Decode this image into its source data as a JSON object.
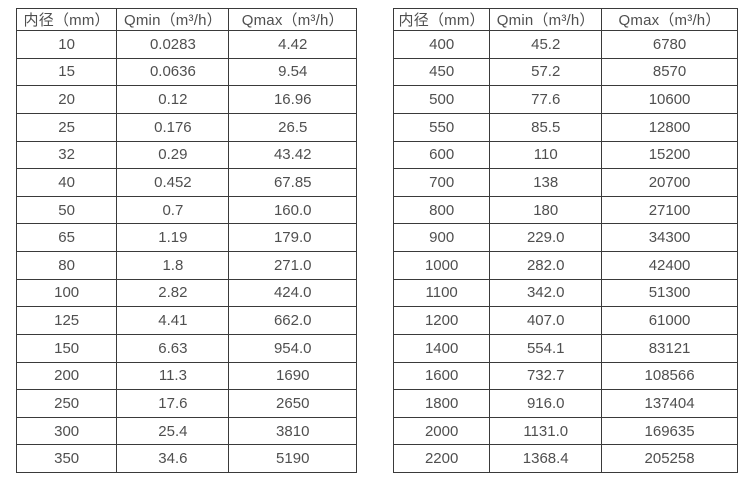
{
  "colors": {
    "background": "#ffffff",
    "border": "#3a3a3a",
    "text": "#4f4f4f"
  },
  "tables": [
    {
      "name": "flow-table-small-diameters",
      "headers": [
        "内径（mm）",
        "Qmin（m³/h）",
        "Qmax（m³/h）"
      ],
      "rows": [
        [
          "10",
          "0.0283",
          "4.42"
        ],
        [
          "15",
          "0.0636",
          "9.54"
        ],
        [
          "20",
          "0.12",
          "16.96"
        ],
        [
          "25",
          "0.176",
          "26.5"
        ],
        [
          "32",
          "0.29",
          "43.42"
        ],
        [
          "40",
          "0.452",
          "67.85"
        ],
        [
          "50",
          "0.7",
          "160.0"
        ],
        [
          "65",
          "1.19",
          "179.0"
        ],
        [
          "80",
          "1.8",
          "271.0"
        ],
        [
          "100",
          "2.82",
          "424.0"
        ],
        [
          "125",
          "4.41",
          "662.0"
        ],
        [
          "150",
          "6.63",
          "954.0"
        ],
        [
          "200",
          "11.3",
          "1690"
        ],
        [
          "250",
          "17.6",
          "2650"
        ],
        [
          "300",
          "25.4",
          "3810"
        ],
        [
          "350",
          "34.6",
          "5190"
        ]
      ]
    },
    {
      "name": "flow-table-large-diameters",
      "headers": [
        "内径（mm）",
        "Qmin（m³/h）",
        "Qmax（m³/h）"
      ],
      "rows": [
        [
          "400",
          "45.2",
          "6780"
        ],
        [
          "450",
          "57.2",
          "8570"
        ],
        [
          "500",
          "77.6",
          "10600"
        ],
        [
          "550",
          "85.5",
          "12800"
        ],
        [
          "600",
          "110",
          "15200"
        ],
        [
          "700",
          "138",
          "20700"
        ],
        [
          "800",
          "180",
          "27100"
        ],
        [
          "900",
          "229.0",
          "34300"
        ],
        [
          "1000",
          "282.0",
          "42400"
        ],
        [
          "1100",
          "342.0",
          "51300"
        ],
        [
          "1200",
          "407.0",
          "61000"
        ],
        [
          "1400",
          "554.1",
          "83121"
        ],
        [
          "1600",
          "732.7",
          "108566"
        ],
        [
          "1800",
          "916.0",
          "137404"
        ],
        [
          "2000",
          "1131.0",
          "169635"
        ],
        [
          "2200",
          "1368.4",
          "205258"
        ]
      ]
    }
  ]
}
